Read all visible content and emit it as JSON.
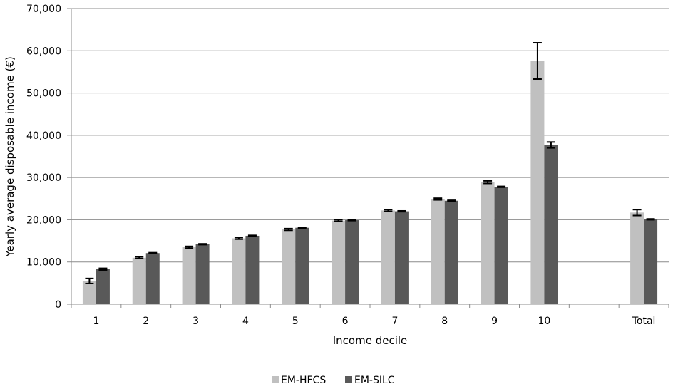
{
  "chart_data": {
    "type": "bar",
    "title": "",
    "xlabel": "Income decile",
    "ylabel": "Yearly average disposable income (€)",
    "categories": [
      "1",
      "2",
      "3",
      "4",
      "5",
      "6",
      "7",
      "8",
      "9",
      "10",
      "",
      "Total"
    ],
    "ylim": [
      0,
      70000
    ],
    "yticks": [
      0,
      10000,
      20000,
      30000,
      40000,
      50000,
      60000,
      70000
    ],
    "ytick_labels": [
      "0",
      "10,000",
      "20,000",
      "30,000",
      "40,000",
      "50,000",
      "60,000",
      "70,000"
    ],
    "grid": true,
    "legend_position": "bottom",
    "series": [
      {
        "name": "EM-HFCS",
        "color": "#c0c0c0",
        "values": [
          5500,
          11000,
          13500,
          15600,
          17700,
          19800,
          22200,
          24900,
          28900,
          57600,
          null,
          21700
        ],
        "error": [
          600,
          200,
          200,
          200,
          200,
          200,
          200,
          200,
          300,
          4300,
          null,
          700
        ]
      },
      {
        "name": "EM-SILC",
        "color": "#595959",
        "values": [
          8300,
          12100,
          14200,
          16200,
          18100,
          19900,
          22000,
          24500,
          27800,
          37700,
          null,
          20100
        ],
        "error": [
          200,
          100,
          100,
          100,
          100,
          100,
          100,
          100,
          100,
          700,
          null,
          100
        ]
      }
    ]
  }
}
